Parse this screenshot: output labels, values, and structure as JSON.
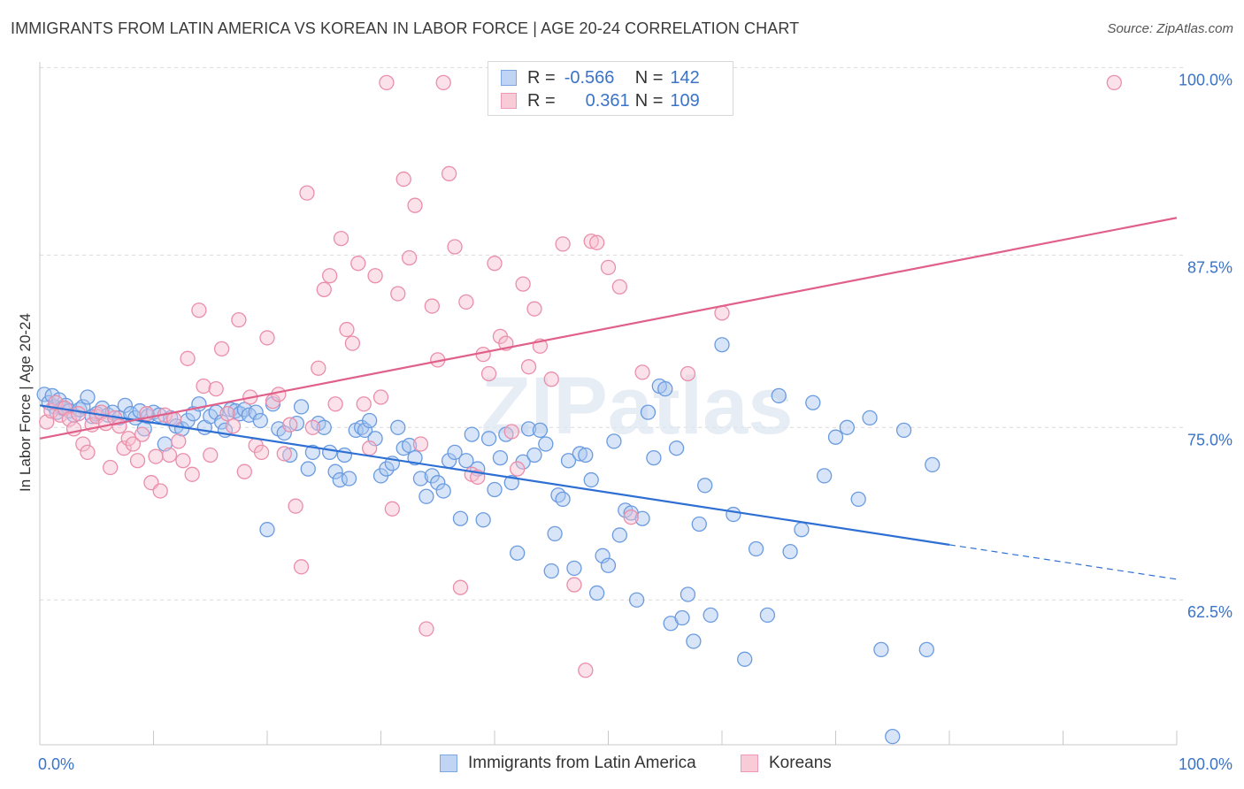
{
  "title": "IMMIGRANTS FROM LATIN AMERICA VS KOREAN IN LABOR FORCE | AGE 20-24 CORRELATION CHART",
  "source": "Source: ZipAtlas.com",
  "watermark": "ZIPatlas",
  "colors": {
    "blue_fill": "#a9c6ef",
    "blue_stroke": "#6a9be0",
    "blue_line": "#2e6fd3",
    "pink_fill": "#f6bfd0",
    "pink_stroke": "#ea8eaa",
    "pink_line": "#e0608a",
    "axis_label": "#3a73c8",
    "grid": "#d9d9d9"
  },
  "legend": {
    "rows": [
      {
        "r_label": "R =",
        "r_value": "-0.566",
        "n_label": "N =",
        "n_value": "142"
      },
      {
        "r_label": "R =",
        "r_value": "0.361",
        "n_label": "N =",
        "n_value": "109"
      }
    ]
  },
  "bottom_legend": [
    "Immigrants from Latin America",
    "Koreans"
  ],
  "chart_data": {
    "type": "scatter",
    "xlabel": "",
    "ylabel": "In Labor Force | Age 20-24",
    "xlim": [
      0,
      100
    ],
    "ylim": [
      52,
      101.5
    ],
    "x_tick_labels": [
      "0.0%",
      "100.0%"
    ],
    "y_ticks": [
      62.5,
      75.0,
      87.5,
      100.0
    ],
    "y_tick_labels": [
      "62.5%",
      "75.0%",
      "87.5%",
      "100.0%"
    ],
    "grid": "horizontal dashed",
    "series": [
      {
        "name": "Immigrants from Latin America",
        "R": -0.566,
        "N": 142,
        "trend": {
          "x0": 0,
          "y0": 76.6,
          "x1": 80,
          "y1": 66.5,
          "dashed_to": 100,
          "dashed_y": 64.0
        },
        "points": [
          [
            0.4,
            77.4
          ],
          [
            0.8,
            76.8
          ],
          [
            1.1,
            77.3
          ],
          [
            1.3,
            76.5
          ],
          [
            1.5,
            76.1
          ],
          [
            1.7,
            77.0
          ],
          [
            2.0,
            76.4
          ],
          [
            2.3,
            76.6
          ],
          [
            2.6,
            76.2
          ],
          [
            3.0,
            75.9
          ],
          [
            3.5,
            76.3
          ],
          [
            3.8,
            76.5
          ],
          [
            4.2,
            77.2
          ],
          [
            4.6,
            75.8
          ],
          [
            5.0,
            76.0
          ],
          [
            5.5,
            76.4
          ],
          [
            6.0,
            75.9
          ],
          [
            6.4,
            76.1
          ],
          [
            7.0,
            75.7
          ],
          [
            7.5,
            76.6
          ],
          [
            8.0,
            76.0
          ],
          [
            8.4,
            75.7
          ],
          [
            8.8,
            76.2
          ],
          [
            9.2,
            74.9
          ],
          [
            9.5,
            75.8
          ],
          [
            10.0,
            76.1
          ],
          [
            10.5,
            75.9
          ],
          [
            11.0,
            73.8
          ],
          [
            11.5,
            75.7
          ],
          [
            12.0,
            75.1
          ],
          [
            12.5,
            74.9
          ],
          [
            13.0,
            75.5
          ],
          [
            13.5,
            76.0
          ],
          [
            14.0,
            76.7
          ],
          [
            14.5,
            75.0
          ],
          [
            15.0,
            75.8
          ],
          [
            15.5,
            76.1
          ],
          [
            16.0,
            75.4
          ],
          [
            16.3,
            74.8
          ],
          [
            16.8,
            76.3
          ],
          [
            17.2,
            76.2
          ],
          [
            17.6,
            76.0
          ],
          [
            18.0,
            76.3
          ],
          [
            18.4,
            75.9
          ],
          [
            19.0,
            76.1
          ],
          [
            19.4,
            75.5
          ],
          [
            20.0,
            67.6
          ],
          [
            20.5,
            76.7
          ],
          [
            21.0,
            74.9
          ],
          [
            21.5,
            74.6
          ],
          [
            22.0,
            73.0
          ],
          [
            22.6,
            75.3
          ],
          [
            23.0,
            76.5
          ],
          [
            23.6,
            72.0
          ],
          [
            24.0,
            73.2
          ],
          [
            24.5,
            75.3
          ],
          [
            25.0,
            75.0
          ],
          [
            25.5,
            73.2
          ],
          [
            26.0,
            71.8
          ],
          [
            26.4,
            71.2
          ],
          [
            26.8,
            73.0
          ],
          [
            27.2,
            71.3
          ],
          [
            27.8,
            74.8
          ],
          [
            28.3,
            75.0
          ],
          [
            28.6,
            74.8
          ],
          [
            29.0,
            75.5
          ],
          [
            29.5,
            74.2
          ],
          [
            30.0,
            71.5
          ],
          [
            30.5,
            72.0
          ],
          [
            31.0,
            72.4
          ],
          [
            31.5,
            75.0
          ],
          [
            32.0,
            73.5
          ],
          [
            32.5,
            73.7
          ],
          [
            33.0,
            72.8
          ],
          [
            33.5,
            71.3
          ],
          [
            34.0,
            70.0
          ],
          [
            34.5,
            71.5
          ],
          [
            35.0,
            71.0
          ],
          [
            35.5,
            70.4
          ],
          [
            36.0,
            72.6
          ],
          [
            36.5,
            73.2
          ],
          [
            37.0,
            68.4
          ],
          [
            37.5,
            72.6
          ],
          [
            38.0,
            74.5
          ],
          [
            38.5,
            72.0
          ],
          [
            39.0,
            68.3
          ],
          [
            39.5,
            74.2
          ],
          [
            40.0,
            70.5
          ],
          [
            40.5,
            72.8
          ],
          [
            41.0,
            74.5
          ],
          [
            41.5,
            71.0
          ],
          [
            42.0,
            65.9
          ],
          [
            42.5,
            72.5
          ],
          [
            43.0,
            74.9
          ],
          [
            43.5,
            73.0
          ],
          [
            44.0,
            74.8
          ],
          [
            44.5,
            73.8
          ],
          [
            45.0,
            64.6
          ],
          [
            45.3,
            67.3
          ],
          [
            45.6,
            70.1
          ],
          [
            46.0,
            69.8
          ],
          [
            46.5,
            72.6
          ],
          [
            47.0,
            64.8
          ],
          [
            47.5,
            73.1
          ],
          [
            48.0,
            73.0
          ],
          [
            48.5,
            71.2
          ],
          [
            49.0,
            63.0
          ],
          [
            49.5,
            65.7
          ],
          [
            50.0,
            65.0
          ],
          [
            50.5,
            74.0
          ],
          [
            51.0,
            67.2
          ],
          [
            51.5,
            69.0
          ],
          [
            52.0,
            68.8
          ],
          [
            52.5,
            62.5
          ],
          [
            53.0,
            68.4
          ],
          [
            53.5,
            76.1
          ],
          [
            54.0,
            72.8
          ],
          [
            54.5,
            78.0
          ],
          [
            55.0,
            77.8
          ],
          [
            55.5,
            60.8
          ],
          [
            56.0,
            73.5
          ],
          [
            56.5,
            61.2
          ],
          [
            57.0,
            62.9
          ],
          [
            57.5,
            59.5
          ],
          [
            58.0,
            68.0
          ],
          [
            58.5,
            70.8
          ],
          [
            59.0,
            61.4
          ],
          [
            60.0,
            81.0
          ],
          [
            61.0,
            68.7
          ],
          [
            62.0,
            58.2
          ],
          [
            63.0,
            66.2
          ],
          [
            64.0,
            61.4
          ],
          [
            65.0,
            77.3
          ],
          [
            66.0,
            66.0
          ],
          [
            67.0,
            67.6
          ],
          [
            68.0,
            76.8
          ],
          [
            69.0,
            71.5
          ],
          [
            70.0,
            74.3
          ],
          [
            71.0,
            75.0
          ],
          [
            72.0,
            69.8
          ],
          [
            73.0,
            75.7
          ],
          [
            74.0,
            58.9
          ],
          [
            75.0,
            52.6
          ],
          [
            76.0,
            74.8
          ],
          [
            78.0,
            58.9
          ],
          [
            78.5,
            72.3
          ]
        ]
      },
      {
        "name": "Koreans",
        "R": 0.361,
        "N": 109,
        "trend": {
          "x0": 0,
          "y0": 74.2,
          "x1": 100,
          "y1": 90.2
        },
        "points": [
          [
            0.6,
            75.4
          ],
          [
            1.0,
            76.2
          ],
          [
            1.4,
            76.8
          ],
          [
            1.8,
            75.9
          ],
          [
            2.2,
            76.4
          ],
          [
            2.6,
            75.6
          ],
          [
            3.0,
            74.9
          ],
          [
            3.4,
            76.0
          ],
          [
            3.8,
            73.8
          ],
          [
            4.2,
            73.2
          ],
          [
            4.6,
            75.2
          ],
          [
            5.0,
            75.8
          ],
          [
            5.4,
            76.1
          ],
          [
            5.8,
            75.3
          ],
          [
            6.2,
            72.1
          ],
          [
            6.6,
            75.7
          ],
          [
            7.0,
            75.1
          ],
          [
            7.4,
            73.5
          ],
          [
            7.8,
            74.2
          ],
          [
            8.2,
            73.8
          ],
          [
            8.6,
            72.6
          ],
          [
            9.0,
            74.5
          ],
          [
            9.4,
            76.0
          ],
          [
            9.8,
            71.0
          ],
          [
            10.2,
            72.9
          ],
          [
            10.6,
            70.4
          ],
          [
            11.0,
            75.9
          ],
          [
            11.4,
            73.0
          ],
          [
            11.8,
            75.6
          ],
          [
            12.2,
            74.0
          ],
          [
            12.6,
            72.6
          ],
          [
            13.0,
            80.0
          ],
          [
            13.4,
            71.6
          ],
          [
            14.0,
            83.5
          ],
          [
            14.4,
            78.0
          ],
          [
            15.0,
            73.0
          ],
          [
            15.5,
            77.8
          ],
          [
            16.0,
            80.7
          ],
          [
            16.5,
            76.0
          ],
          [
            17.0,
            75.1
          ],
          [
            17.5,
            82.8
          ],
          [
            18.0,
            71.8
          ],
          [
            18.5,
            77.2
          ],
          [
            19.0,
            73.7
          ],
          [
            19.5,
            73.2
          ],
          [
            20.0,
            81.5
          ],
          [
            20.5,
            76.9
          ],
          [
            21.0,
            77.4
          ],
          [
            21.5,
            73.1
          ],
          [
            22.0,
            75.2
          ],
          [
            22.5,
            69.3
          ],
          [
            23.0,
            64.9
          ],
          [
            23.5,
            92.0
          ],
          [
            24.0,
            75.0
          ],
          [
            24.5,
            79.3
          ],
          [
            25.0,
            85.0
          ],
          [
            25.5,
            86.0
          ],
          [
            26.0,
            76.7
          ],
          [
            26.5,
            88.7
          ],
          [
            27.0,
            82.1
          ],
          [
            27.5,
            81.1
          ],
          [
            28.0,
            86.9
          ],
          [
            28.5,
            76.7
          ],
          [
            29.0,
            73.5
          ],
          [
            29.5,
            86.0
          ],
          [
            30.0,
            77.2
          ],
          [
            30.5,
            100.0
          ],
          [
            31.0,
            69.1
          ],
          [
            31.5,
            84.7
          ],
          [
            32.0,
            93.0
          ],
          [
            32.5,
            87.3
          ],
          [
            33.0,
            91.1
          ],
          [
            33.5,
            73.8
          ],
          [
            34.0,
            60.4
          ],
          [
            34.5,
            83.8
          ],
          [
            35.0,
            79.9
          ],
          [
            35.5,
            100.0
          ],
          [
            36.0,
            93.4
          ],
          [
            36.5,
            88.1
          ],
          [
            37.0,
            63.4
          ],
          [
            37.5,
            84.1
          ],
          [
            38.0,
            71.6
          ],
          [
            38.5,
            71.4
          ],
          [
            39.0,
            80.3
          ],
          [
            39.5,
            78.9
          ],
          [
            40.0,
            86.9
          ],
          [
            40.5,
            81.6
          ],
          [
            41.0,
            81.1
          ],
          [
            41.5,
            74.7
          ],
          [
            42.0,
            72.0
          ],
          [
            42.5,
            85.4
          ],
          [
            43.0,
            79.4
          ],
          [
            43.5,
            83.6
          ],
          [
            44.0,
            80.9
          ],
          [
            45.0,
            78.5
          ],
          [
            46.0,
            88.3
          ],
          [
            47.0,
            63.6
          ],
          [
            48.0,
            57.4
          ],
          [
            48.5,
            88.5
          ],
          [
            49.0,
            88.4
          ],
          [
            50.0,
            86.6
          ],
          [
            51.0,
            85.2
          ],
          [
            52.0,
            68.5
          ],
          [
            53.0,
            79.0
          ],
          [
            57.0,
            78.9
          ],
          [
            60.0,
            83.3
          ],
          [
            94.5,
            100.0
          ]
        ]
      }
    ]
  }
}
